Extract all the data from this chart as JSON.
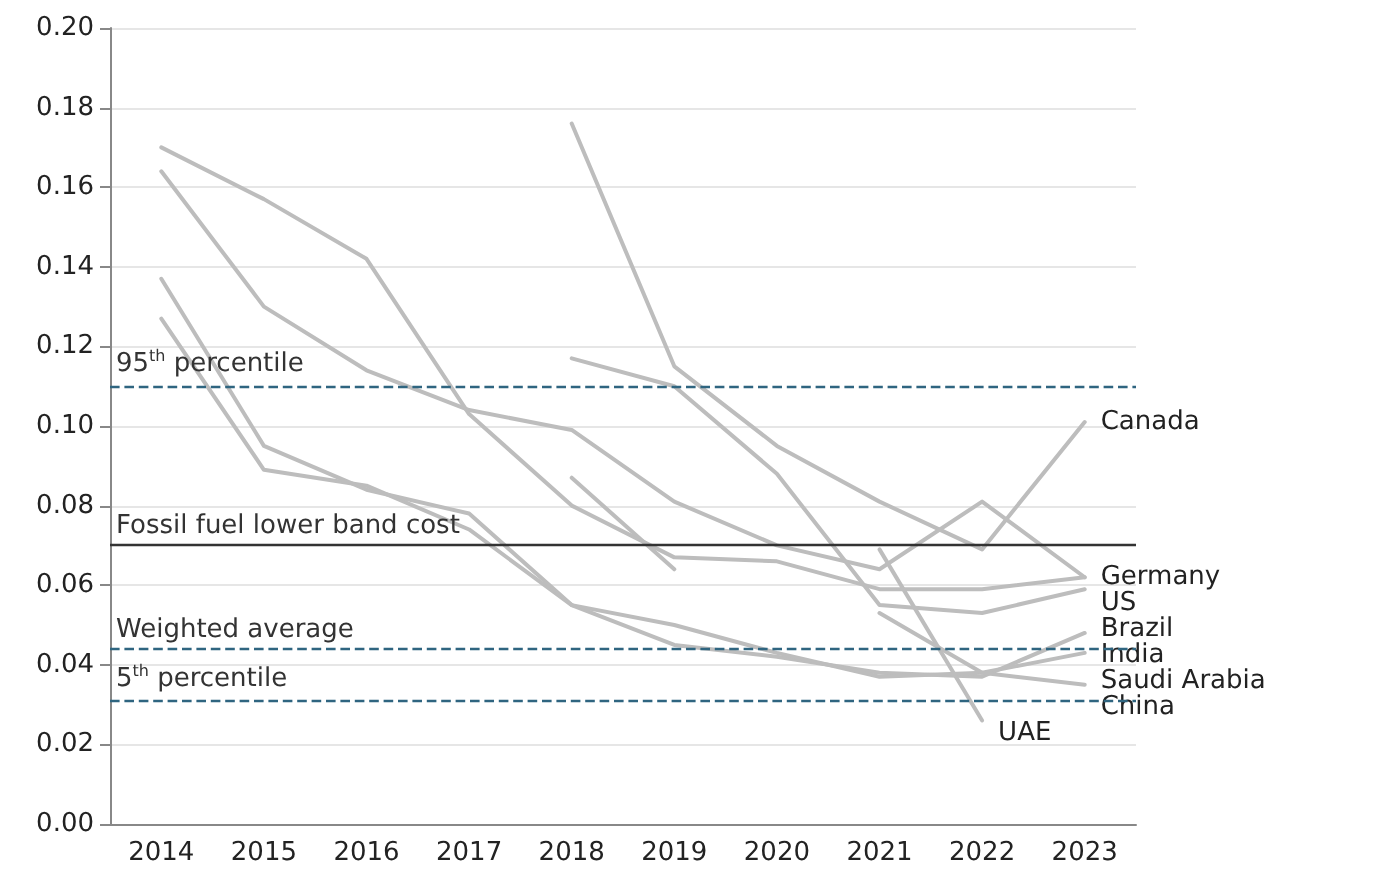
{
  "chart_data": {
    "type": "line",
    "categories": [
      "2014",
      "2015",
      "2016",
      "2017",
      "2018",
      "2019",
      "2020",
      "2021",
      "2022",
      "2023"
    ],
    "series": [
      {
        "name": "Canada",
        "color": "#bdbdbd",
        "values": [
          null,
          null,
          null,
          null,
          0.176,
          0.115,
          0.095,
          0.081,
          0.069,
          0.101
        ]
      },
      {
        "name": "Germany",
        "color": "#bdbdbd",
        "values": [
          0.164,
          0.13,
          0.114,
          0.104,
          0.099,
          0.081,
          0.07,
          0.064,
          0.081,
          0.062
        ]
      },
      {
        "name": "US",
        "color": "#bdbdbd",
        "values": [
          0.17,
          0.157,
          0.142,
          0.103,
          0.08,
          0.067,
          0.066,
          0.059,
          0.059,
          0.062
        ]
      },
      {
        "name": "Brazil",
        "color": "#bdbdbd",
        "values": [
          null,
          null,
          null,
          null,
          0.117,
          0.11,
          0.088,
          0.055,
          0.053,
          0.059
        ]
      },
      {
        "name": "India",
        "color": "#bdbdbd",
        "values": [
          0.127,
          0.089,
          0.085,
          0.074,
          0.055,
          0.045,
          0.042,
          0.038,
          0.037,
          0.048
        ]
      },
      {
        "name": "Saudi Arabia",
        "color": "#bdbdbd",
        "values": [
          0.137,
          0.095,
          0.084,
          0.078,
          0.055,
          0.05,
          0.043,
          0.037,
          0.038,
          0.043
        ]
      },
      {
        "name": "China",
        "color": "#bdbdbd",
        "values": [
          null,
          null,
          null,
          null,
          null,
          null,
          null,
          0.053,
          0.038,
          0.035
        ]
      },
      {
        "name": "UAE",
        "color": "#bdbdbd",
        "values": [
          null,
          null,
          null,
          null,
          null,
          null,
          null,
          0.069,
          0.026,
          null
        ]
      },
      {
        "color": "#bdbdbd",
        "values": [
          null,
          null,
          null,
          null,
          0.087,
          0.064,
          null,
          null,
          null,
          null
        ]
      }
    ],
    "ylim": [
      0,
      0.2
    ],
    "yticks": [
      {
        "value": 0,
        "label": "0.00"
      },
      {
        "value": 0.02,
        "label": "0.02"
      },
      {
        "value": 0.04,
        "label": "0.04"
      },
      {
        "value": 0.06,
        "label": "0.06"
      },
      {
        "value": 0.08,
        "label": "0.08"
      },
      {
        "value": 0.1,
        "label": "0.10"
      },
      {
        "value": 0.12,
        "label": "0.12"
      },
      {
        "value": 0.14,
        "label": "0.14"
      },
      {
        "value": 0.16,
        "label": "0.16"
      },
      {
        "value": 0.18,
        "label": "0.18"
      },
      {
        "value": 0.2,
        "label": "0.20"
      }
    ],
    "ref_lines": [
      {
        "axis": "y",
        "value": 0.11,
        "label": "95$^{th}$ percentile",
        "color": "#2f6580",
        "line_style": "dashed"
      },
      {
        "axis": "y",
        "value": 0.07,
        "label": "Fossil fuel lower band cost",
        "color": "#333333",
        "line_style": "solid"
      },
      {
        "axis": "y",
        "value": 0.044,
        "label": "Weighted average",
        "color": "#2f6580",
        "line_style": "dashed"
      },
      {
        "axis": "y",
        "value": 0.031,
        "label": "5$^{th}$ percentile",
        "color": "#2f6580",
        "line_style": "dashed"
      }
    ],
    "grid": "y",
    "legend": false,
    "marker": "none",
    "line_style": "solid"
  }
}
